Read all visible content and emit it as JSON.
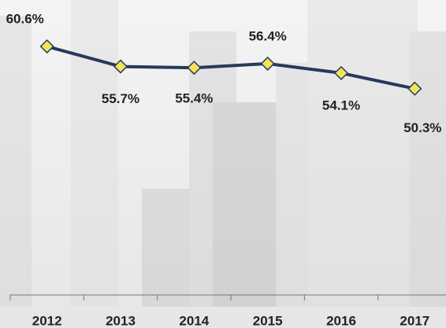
{
  "chart_data": {
    "type": "line",
    "categories": [
      "2012",
      "2013",
      "2014",
      "2015",
      "2016",
      "2017"
    ],
    "values": [
      60.6,
      55.7,
      55.4,
      56.4,
      54.1,
      50.3
    ],
    "value_labels": [
      "60.6%",
      "55.7%",
      "55.4%",
      "56.4%",
      "54.1%",
      "50.3%"
    ],
    "color": "#263a5c",
    "marker_color": "#f2e35a",
    "ylim": [
      0,
      70
    ]
  }
}
